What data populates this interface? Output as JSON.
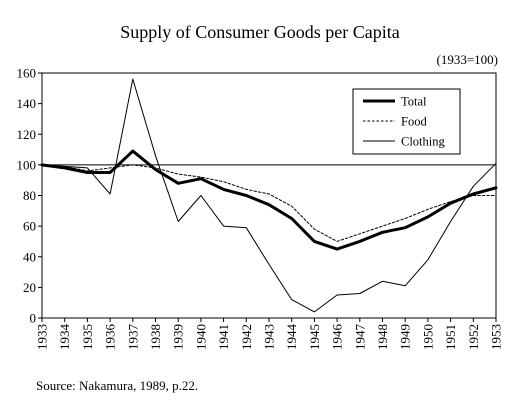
{
  "chart_data": {
    "type": "line",
    "title": "Supply of Consumer Goods per Capita",
    "subtitle": "(1933=100)",
    "source": "Source: Nakamura, 1989, p.22.",
    "xlabel": "",
    "ylabel": "",
    "ylim": [
      0,
      160
    ],
    "yticks": [
      "0",
      "20",
      "40",
      "60",
      "80",
      "100",
      "120",
      "140",
      "160"
    ],
    "reference_line": 100,
    "legend_position": "top-right",
    "x": [
      "1933",
      "1934",
      "1935",
      "1936",
      "1937",
      "1938",
      "1939",
      "1940",
      "1941",
      "1942",
      "1943",
      "1944",
      "1945",
      "1946",
      "1947",
      "1948",
      "1949",
      "1950",
      "1951",
      "1952",
      "1953"
    ],
    "series": [
      {
        "name": "Total",
        "style": "thick",
        "color": "#000000",
        "values": [
          100,
          98,
          95,
          95,
          109,
          97,
          88,
          91,
          84,
          80,
          74,
          65,
          50,
          45,
          50,
          56,
          59,
          66,
          75,
          81,
          85
        ]
      },
      {
        "name": "Food",
        "style": "dashed",
        "color": "#000000",
        "values": [
          100,
          99,
          96,
          98,
          100,
          98,
          94,
          92,
          89,
          84,
          81,
          73,
          58,
          50,
          55,
          60,
          65,
          71,
          76,
          80,
          80
        ]
      },
      {
        "name": "Clothing",
        "style": "thin",
        "color": "#000000",
        "values": [
          100,
          99,
          98,
          81,
          156,
          106,
          63,
          80,
          60,
          59,
          35,
          12,
          4,
          15,
          16,
          24,
          21,
          38,
          63,
          86,
          101
        ]
      }
    ]
  }
}
